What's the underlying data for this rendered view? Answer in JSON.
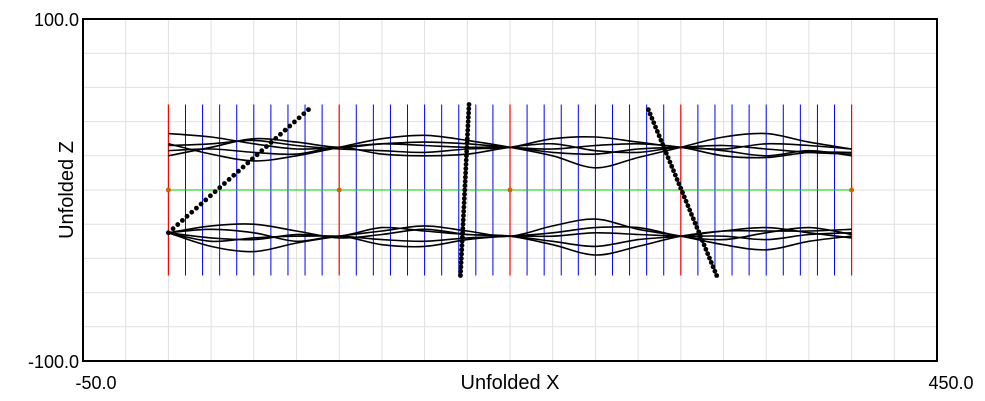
{
  "chart_data": {
    "type": "line",
    "title": "",
    "xlabel": "Unfolded X",
    "ylabel": "Unfolded Z",
    "xlim": [
      -50.0,
      450.0
    ],
    "ylim": [
      -100.0,
      100.0
    ],
    "x_tick_labels": [
      "-50.0",
      "450.0"
    ],
    "y_tick_labels": [
      "100.0",
      "-100.0"
    ],
    "grid": true,
    "grid_step_x": 25,
    "grid_step_y": 20,
    "colors": {
      "frame": "#000000",
      "grid": "#e0e0e0",
      "panel_line": "#ff0000",
      "stave_line": "#0000ff",
      "centerline": "#00cc00",
      "marker": "#cc6600",
      "curve": "#000000"
    },
    "red_lines_x": [
      0,
      100,
      200,
      300,
      400
    ],
    "blue_lines_x": [
      10,
      20,
      30,
      40,
      50,
      60,
      70,
      80,
      90,
      110,
      120,
      130,
      140,
      150,
      160,
      170,
      180,
      190,
      210,
      220,
      230,
      240,
      250,
      260,
      270,
      280,
      290,
      310,
      320,
      330,
      340,
      350,
      360,
      370,
      380,
      390
    ],
    "vertical_lines_zrange": [
      -50,
      50
    ],
    "centerline_z": 0,
    "centerline_xrange": [
      0,
      400
    ],
    "marker_points": [
      [
        0,
        0
      ],
      [
        100,
        0
      ],
      [
        200,
        0
      ],
      [
        400,
        0
      ]
    ],
    "upper_band": {
      "center_z": 25,
      "nodes_x": [
        0,
        100,
        175,
        200,
        240,
        290,
        320,
        400
      ],
      "series": [
        {
          "x": [
            0,
            25,
            50,
            75,
            100,
            125,
            150,
            175,
            200,
            225,
            250,
            275,
            300,
            325,
            350,
            375,
            400
          ],
          "y": [
            33,
            31,
            27,
            24,
            25,
            27,
            26,
            25,
            25,
            22,
            21,
            24,
            25,
            26,
            24,
            22,
            21
          ]
        },
        {
          "x": [
            0,
            25,
            50,
            75,
            100,
            125,
            150,
            175,
            200,
            225,
            250,
            275,
            300,
            325,
            350,
            375,
            400
          ],
          "y": [
            26,
            27,
            29,
            26,
            24,
            23,
            22,
            24,
            25,
            30,
            31,
            28,
            25,
            24,
            27,
            26,
            24
          ]
        },
        {
          "x": [
            0,
            25,
            50,
            75,
            100,
            125,
            150,
            175,
            200,
            225,
            250,
            275,
            300,
            325,
            350,
            375,
            400
          ],
          "y": [
            27,
            21,
            17,
            20,
            25,
            30,
            32,
            29,
            25,
            20,
            13,
            19,
            25,
            31,
            33,
            28,
            24
          ]
        },
        {
          "x": [
            0,
            25,
            50,
            75,
            100,
            125,
            150,
            175,
            200,
            225,
            250,
            275,
            300,
            325,
            350,
            375,
            400
          ],
          "y": [
            23,
            24,
            22,
            21,
            25,
            21,
            20,
            21,
            25,
            27,
            23,
            22,
            25,
            23,
            20,
            23,
            20
          ]
        },
        {
          "x": [
            0,
            25,
            50,
            75,
            100,
            125,
            150,
            175,
            200,
            225,
            250,
            275,
            300,
            325,
            350,
            375,
            400
          ],
          "y": [
            20,
            25,
            30,
            28,
            25,
            27,
            28,
            27,
            25,
            24,
            26,
            27,
            25,
            20,
            19,
            22,
            22
          ]
        }
      ]
    },
    "lower_band": {
      "center_z": -27,
      "nodes_x": [
        0,
        100,
        175,
        200,
        300,
        400
      ],
      "series": [
        {
          "x": [
            0,
            25,
            50,
            75,
            100,
            125,
            150,
            175,
            200,
            225,
            250,
            275,
            300,
            325,
            350,
            375,
            400
          ],
          "y": [
            -25,
            -21,
            -20,
            -24,
            -28,
            -26,
            -23,
            -26,
            -27,
            -30,
            -33,
            -29,
            -27,
            -24,
            -22,
            -25,
            -28
          ]
        },
        {
          "x": [
            0,
            25,
            50,
            75,
            100,
            125,
            150,
            175,
            200,
            225,
            250,
            275,
            300,
            325,
            350,
            375,
            400
          ],
          "y": [
            -25,
            -33,
            -36,
            -31,
            -27,
            -24,
            -21,
            -24,
            -27,
            -21,
            -17,
            -23,
            -27,
            -32,
            -35,
            -30,
            -27
          ]
        },
        {
          "x": [
            0,
            25,
            50,
            75,
            100,
            125,
            150,
            175,
            200,
            225,
            250,
            275,
            300,
            325,
            350,
            375,
            400
          ],
          "y": [
            -25,
            -23,
            -25,
            -30,
            -27,
            -32,
            -33,
            -29,
            -27,
            -27,
            -25,
            -26,
            -27,
            -27,
            -29,
            -26,
            -25
          ]
        },
        {
          "x": [
            0,
            25,
            50,
            75,
            100,
            125,
            150,
            175,
            200,
            225,
            250,
            275,
            300,
            325,
            350,
            375,
            400
          ],
          "y": [
            -25,
            -28,
            -29,
            -26,
            -27,
            -22,
            -24,
            -26,
            -27,
            -32,
            -38,
            -33,
            -27,
            -24,
            -24,
            -24,
            -23
          ]
        },
        {
          "x": [
            0,
            25,
            50,
            75,
            100,
            125,
            150,
            175,
            200,
            225,
            250,
            275,
            300,
            325,
            350,
            375,
            400
          ],
          "y": [
            -25,
            -30,
            -28,
            -27,
            -27,
            -29,
            -30,
            -28,
            -27,
            -25,
            -22,
            -22,
            -27,
            -29,
            -25,
            -22,
            -26
          ]
        }
      ]
    },
    "dotted_lines": [
      {
        "start": [
          0,
          -25
        ],
        "end": [
          82,
          47
        ],
        "dots": 30
      },
      {
        "start": [
          171,
          -50
        ],
        "end": [
          176,
          50
        ],
        "dots": 40
      },
      {
        "start": [
          281,
          47
        ],
        "end": [
          321,
          -50
        ],
        "dots": 38
      }
    ]
  }
}
